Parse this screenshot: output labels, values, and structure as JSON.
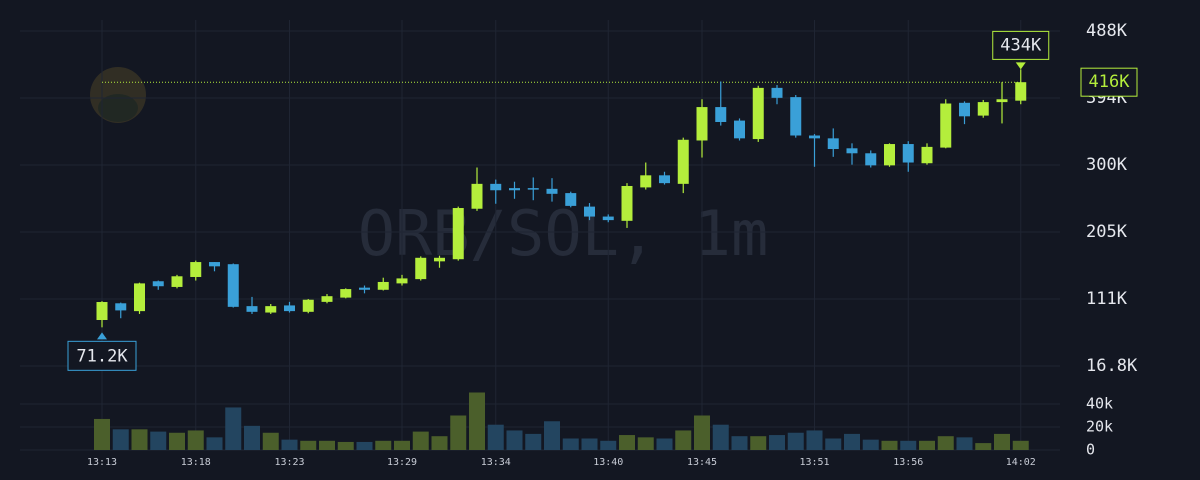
{
  "chart_data": {
    "type": "candlestick",
    "watermark": "ORB/SOL, 1m",
    "categories": [
      "13:13",
      null,
      null,
      null,
      null,
      "13:18",
      null,
      null,
      null,
      null,
      "13:23",
      null,
      null,
      null,
      null,
      null,
      "13:29",
      null,
      null,
      null,
      null,
      "13:34",
      null,
      null,
      null,
      null,
      null,
      "13:40",
      null,
      null,
      null,
      null,
      "13:45",
      null,
      null,
      null,
      null,
      null,
      "13:51",
      null,
      null,
      null,
      null,
      "13:56",
      null,
      null,
      null,
      null,
      null,
      "14:02"
    ],
    "open": [
      81500,
      105000,
      94000,
      136000,
      128000,
      142000,
      163000,
      160000,
      101000,
      92000,
      102000,
      93000,
      107000,
      113000,
      127000,
      124000,
      133000,
      139000,
      164000,
      167000,
      238000,
      273000,
      267000,
      267000,
      266000,
      260000,
      241000,
      227000,
      221000,
      268000,
      285000,
      273000,
      334000,
      381000,
      362000,
      336000,
      408000,
      395000,
      341000,
      337000,
      323000,
      316000,
      299000,
      329000,
      302000,
      324000,
      387000,
      369000,
      388000,
      390000
    ],
    "high": [
      108000,
      106000,
      134000,
      137000,
      145000,
      165000,
      163000,
      161000,
      114000,
      104000,
      107000,
      111000,
      118000,
      126000,
      130000,
      141000,
      145000,
      171000,
      172000,
      241000,
      296000,
      279000,
      276000,
      282000,
      281000,
      262000,
      246000,
      230000,
      274000,
      303000,
      290000,
      338000,
      392000,
      417000,
      365000,
      411000,
      412000,
      398000,
      343000,
      351000,
      330000,
      320000,
      330000,
      333000,
      330000,
      392000,
      389000,
      391000,
      416000,
      434000
    ],
    "low": [
      71200,
      84000,
      90000,
      124000,
      126000,
      137000,
      150000,
      99000,
      90000,
      90000,
      92000,
      91000,
      105000,
      112000,
      119000,
      123000,
      130000,
      137000,
      155000,
      165000,
      235000,
      245000,
      252000,
      250000,
      248000,
      240000,
      222000,
      219000,
      211000,
      265000,
      272000,
      260000,
      310000,
      355000,
      334000,
      332000,
      385000,
      338000,
      297000,
      311000,
      300000,
      296000,
      297000,
      290000,
      300000,
      323000,
      357000,
      366000,
      358000,
      385000
    ],
    "close": [
      106800,
      95000,
      133000,
      129000,
      143000,
      163000,
      157000,
      100000,
      93000,
      101000,
      94000,
      110000,
      115000,
      125000,
      124000,
      135000,
      140000,
      169000,
      169000,
      239000,
      273000,
      264000,
      264000,
      265000,
      259000,
      242000,
      227000,
      222000,
      270000,
      285000,
      274000,
      335000,
      381000,
      360000,
      337000,
      408000,
      394000,
      341000,
      337000,
      322000,
      316000,
      299000,
      329000,
      303000,
      325000,
      386000,
      368000,
      388000,
      392000,
      416000
    ],
    "volume": [
      27000,
      18000,
      18000,
      16000,
      15000,
      17000,
      11000,
      37000,
      21000,
      15000,
      9000,
      8000,
      8000,
      7000,
      7000,
      8000,
      8000,
      16000,
      12000,
      30000,
      50000,
      22000,
      17000,
      14000,
      25000,
      10000,
      10000,
      8000,
      13000,
      11000,
      10000,
      17000,
      30000,
      22000,
      12000,
      12000,
      13000,
      15000,
      17000,
      10000,
      14000,
      9000,
      8000,
      8000,
      8000,
      12000,
      11000,
      6000,
      14000,
      8000
    ],
    "up_color": "#b4ee3c",
    "down_color": "#3aa0d8",
    "volume_up_color": "#4b5f2b",
    "volume_down_color": "#234560",
    "ylim": [
      16800,
      488000
    ],
    "yticks": [
      {
        "value": 16800,
        "label": "16.8K"
      },
      {
        "value": 111040,
        "label": "111K"
      },
      {
        "value": 205280,
        "label": "205K"
      },
      {
        "value": 299520,
        "label": "300K"
      },
      {
        "value": 393760,
        "label": "394K"
      },
      {
        "value": 488000,
        "label": "488K"
      }
    ],
    "volume_ylim": [
      0,
      50000
    ],
    "volume_yticks": [
      0,
      {
        "value": 20000,
        "label": "20k"
      },
      {
        "value": 40000,
        "label": "40k"
      }
    ],
    "high_label": {
      "value": 434000,
      "label": "434K"
    },
    "low_label": {
      "value": 71200,
      "label": "71.2K"
    },
    "last_label": {
      "value": 416000,
      "label": "416K"
    },
    "grid": true
  }
}
